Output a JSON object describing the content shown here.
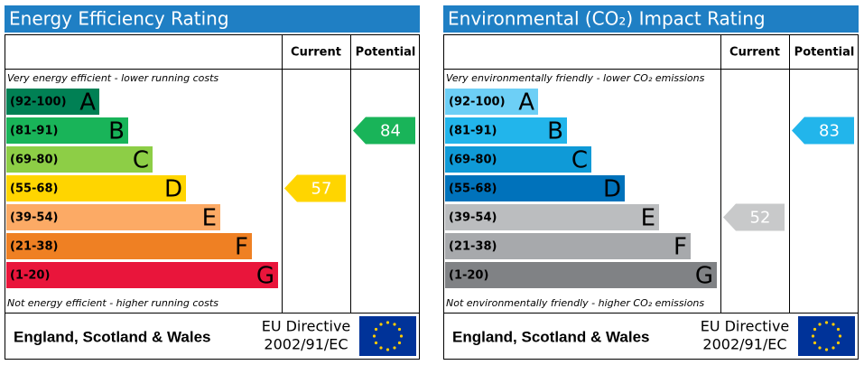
{
  "panels": [
    {
      "title": "Energy Efficiency Rating",
      "header_current": "Current",
      "header_potential": "Potential",
      "top_note": "Very energy efficient - lower running costs",
      "bottom_note": "Not energy efficient - higher running costs",
      "bands": [
        {
          "range": "(92-100)",
          "letter": "A",
          "color": "#008054"
        },
        {
          "range": "(81-91)",
          "letter": "B",
          "color": "#19b459"
        },
        {
          "range": "(69-80)",
          "letter": "C",
          "color": "#8dce46"
        },
        {
          "range": "(55-68)",
          "letter": "D",
          "color": "#ffd500"
        },
        {
          "range": "(39-54)",
          "letter": "E",
          "color": "#fcaa65"
        },
        {
          "range": "(21-38)",
          "letter": "F",
          "color": "#ef8023"
        },
        {
          "range": "(1-20)",
          "letter": "G",
          "color": "#e9153b"
        }
      ],
      "current": 57,
      "current_color": "#ffd500",
      "potential": 84,
      "potential_color": "#19b459",
      "region": "England, Scotland & Wales",
      "directive_line1": "EU Directive",
      "directive_line2": "2002/91/EC"
    },
    {
      "title": "Environmental (CO₂) Impact Rating",
      "header_current": "Current",
      "header_potential": "Potential",
      "top_note": "Very environmentally friendly - lower CO₂ emissions",
      "bottom_note": "Not environmentally friendly - higher CO₂ emissions",
      "bands": [
        {
          "range": "(92-100)",
          "letter": "A",
          "color": "#6dcff6"
        },
        {
          "range": "(81-91)",
          "letter": "B",
          "color": "#22b5eb"
        },
        {
          "range": "(69-80)",
          "letter": "C",
          "color": "#0f9ad7"
        },
        {
          "range": "(55-68)",
          "letter": "D",
          "color": "#0072bb"
        },
        {
          "range": "(39-54)",
          "letter": "E",
          "color": "#bbbdbf"
        },
        {
          "range": "(21-38)",
          "letter": "F",
          "color": "#a7a9ac"
        },
        {
          "range": "(1-20)",
          "letter": "G",
          "color": "#808285"
        }
      ],
      "current": 52,
      "current_color": "#c8c9ca",
      "potential": 83,
      "potential_color": "#22b5eb",
      "region": "England, Scotland & Wales",
      "directive_line1": "EU Directive",
      "directive_line2": "2002/91/EC"
    }
  ]
}
